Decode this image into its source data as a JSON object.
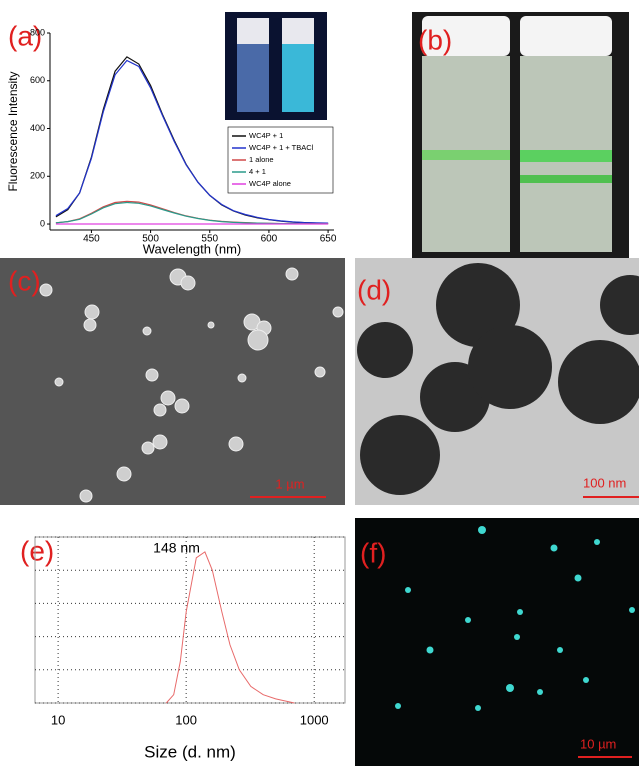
{
  "panel_labels": [
    "(a)",
    "(b)",
    "(c)",
    "(d)",
    "(e)",
    "(f)"
  ],
  "scale_bars": [
    "1 µm",
    "100 nm",
    "10 µm"
  ],
  "chart_data": [
    {
      "type": "line",
      "xlabel": "Wavelength (nm)",
      "ylabel": "Fluorescence Intensity",
      "x": [
        420,
        430,
        440,
        450,
        460,
        470,
        480,
        490,
        500,
        510,
        520,
        530,
        540,
        550,
        560,
        570,
        580,
        590,
        600,
        610,
        620,
        630,
        640,
        650
      ],
      "series": [
        {
          "name": "WC4P + 1",
          "color": "#111111",
          "values": [
            30,
            60,
            130,
            280,
            480,
            640,
            700,
            670,
            580,
            460,
            350,
            250,
            175,
            120,
            80,
            55,
            38,
            26,
            18,
            12,
            8,
            6,
            4,
            3
          ]
        },
        {
          "name": "WC4P + 1 + TBACl",
          "color": "#2233cc",
          "values": [
            35,
            65,
            130,
            275,
            470,
            625,
            685,
            660,
            570,
            455,
            345,
            248,
            175,
            120,
            82,
            56,
            40,
            28,
            19,
            13,
            9,
            6,
            5,
            4
          ]
        },
        {
          "name": "1 alone",
          "color": "#d04848",
          "values": [
            5,
            10,
            22,
            45,
            72,
            90,
            95,
            92,
            80,
            64,
            48,
            34,
            24,
            16,
            11,
            8,
            6,
            4,
            3,
            2,
            2,
            1,
            1,
            1
          ]
        },
        {
          "name": "4 + 1",
          "color": "#2a9a8a",
          "values": [
            5,
            10,
            20,
            42,
            68,
            85,
            90,
            87,
            76,
            61,
            46,
            33,
            23,
            15,
            10,
            7,
            5,
            4,
            3,
            2,
            2,
            1,
            1,
            1
          ]
        },
        {
          "name": "WC4P alone",
          "color": "#e040e0",
          "values": [
            0,
            0,
            0,
            0,
            0,
            0,
            0,
            0,
            0,
            0,
            0,
            0,
            0,
            0,
            0,
            0,
            0,
            0,
            0,
            0,
            0,
            0,
            0,
            0
          ]
        }
      ],
      "xlim": [
        415,
        655
      ],
      "xticks": [
        450,
        500,
        550,
        600,
        650
      ],
      "ylim": [
        -25,
        800
      ],
      "yticks": [
        0,
        200,
        400,
        600,
        800
      ],
      "grid": false,
      "legend": "right"
    },
    {
      "type": "line",
      "xlabel": "Size (d. nm)",
      "annotation": "148 nm",
      "xscale": "log",
      "color": "#e86a6a",
      "x": [
        70,
        80,
        90,
        100,
        120,
        140,
        160,
        190,
        220,
        260,
        320,
        400,
        500,
        700
      ],
      "values": [
        0,
        1,
        5,
        11,
        17.5,
        18.2,
        16,
        11,
        7,
        4,
        2,
        1,
        0.5,
        0
      ],
      "xlim": [
        6.6,
        1740
      ],
      "xticks": [
        10,
        100,
        1000
      ],
      "ylim": [
        0,
        20
      ],
      "yticks": [
        0,
        4,
        8,
        12,
        16,
        20
      ],
      "grid": true
    }
  ]
}
